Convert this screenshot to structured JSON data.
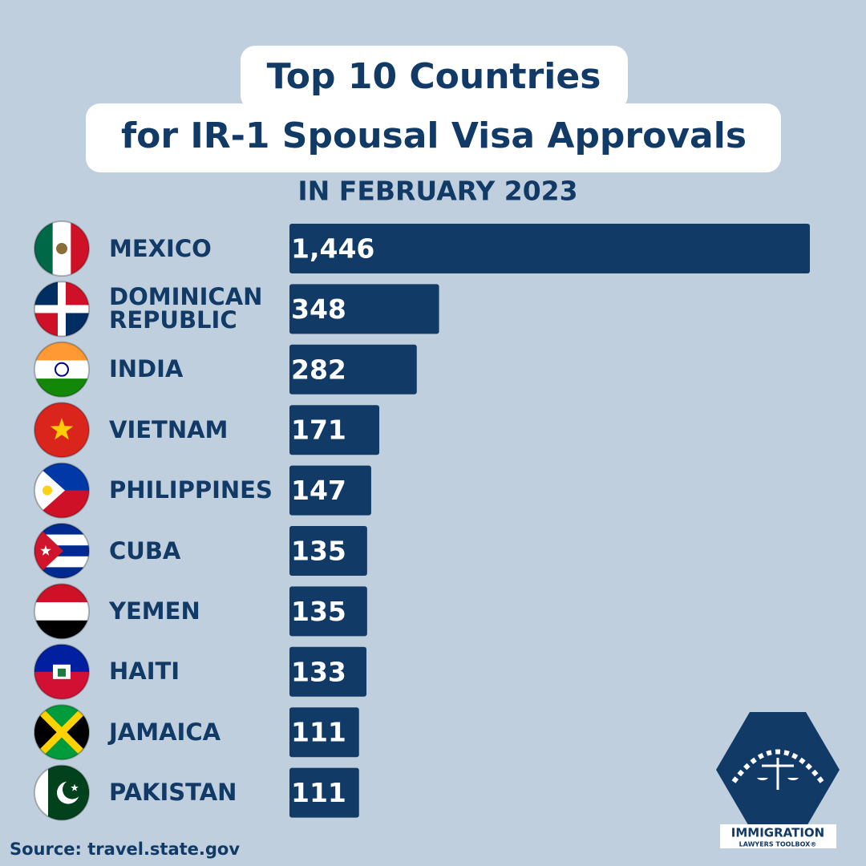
{
  "chart_data": {
    "type": "bar",
    "orientation": "horizontal",
    "title": [
      "Top 10 Countries",
      "for IR-1 Spousal Visa Approvals"
    ],
    "subtitle": "IN FEBRUARY 2023",
    "categories": [
      "MEXICO",
      "DOMINICAN REPUBLIC",
      "INDIA",
      "VIETNAM",
      "PHILIPPINES",
      "CUBA",
      "YEMEN",
      "HAITI",
      "JAMAICA",
      "PAKISTAN"
    ],
    "values": [
      1446,
      348,
      282,
      171,
      147,
      135,
      135,
      133,
      111,
      111
    ],
    "value_labels": [
      "1,446",
      "348",
      "282",
      "171",
      "147",
      "135",
      "135",
      "133",
      "111",
      "111"
    ],
    "color": "#123a67",
    "source": "Source: travel.state.gov",
    "logo": {
      "line1": "IMMIGRATION",
      "line2": "LAWYERS TOOLBOX®"
    }
  }
}
